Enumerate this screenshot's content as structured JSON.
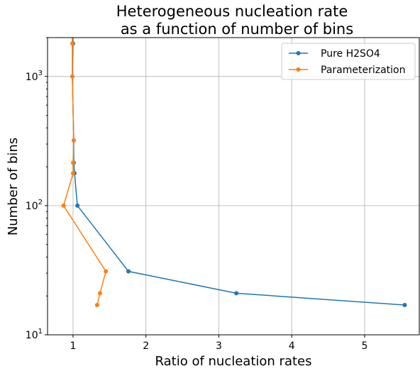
{
  "chart_data": {
    "type": "line",
    "title": [
      "Heterogeneous nucleation rate",
      "as a function of number of bins"
    ],
    "xlabel": "Ratio of nucleation rates",
    "ylabel": "Number of bins",
    "xlim": [
      0.65,
      5.75
    ],
    "ylim": [
      10,
      2000
    ],
    "yscale": "log",
    "grid": true,
    "legend_position": "top-right",
    "x_ticks": [
      {
        "value": 1,
        "label": "1"
      },
      {
        "value": 2,
        "label": "2"
      },
      {
        "value": 3,
        "label": "3"
      },
      {
        "value": 4,
        "label": "4"
      },
      {
        "value": 5,
        "label": "5"
      }
    ],
    "y_ticks": [
      {
        "value": 10,
        "base": "10",
        "exp": "1"
      },
      {
        "value": 100,
        "base": "10",
        "exp": "2"
      },
      {
        "value": 1000,
        "base": "10",
        "exp": "3"
      }
    ],
    "series": [
      {
        "name": "Pure H2SO4",
        "color": "#1f77b4",
        "points": [
          {
            "x": 1.0,
            "y": 4000
          },
          {
            "x": 1.0,
            "y": 1800
          },
          {
            "x": 0.99,
            "y": 1000
          },
          {
            "x": 1.01,
            "y": 320
          },
          {
            "x": 1.01,
            "y": 215
          },
          {
            "x": 1.02,
            "y": 178
          },
          {
            "x": 1.06,
            "y": 100
          },
          {
            "x": 1.76,
            "y": 31
          },
          {
            "x": 3.24,
            "y": 21
          },
          {
            "x": 5.55,
            "y": 17
          }
        ]
      },
      {
        "name": "Parameterization",
        "color": "#ff7f0e",
        "points": [
          {
            "x": 0.99,
            "y": 4000
          },
          {
            "x": 0.99,
            "y": 1800
          },
          {
            "x": 0.99,
            "y": 1000
          },
          {
            "x": 1.01,
            "y": 320
          },
          {
            "x": 1.0,
            "y": 215
          },
          {
            "x": 1.0,
            "y": 178
          },
          {
            "x": 0.87,
            "y": 100
          },
          {
            "x": 1.45,
            "y": 31
          },
          {
            "x": 1.37,
            "y": 21
          },
          {
            "x": 1.33,
            "y": 17
          }
        ]
      }
    ]
  }
}
